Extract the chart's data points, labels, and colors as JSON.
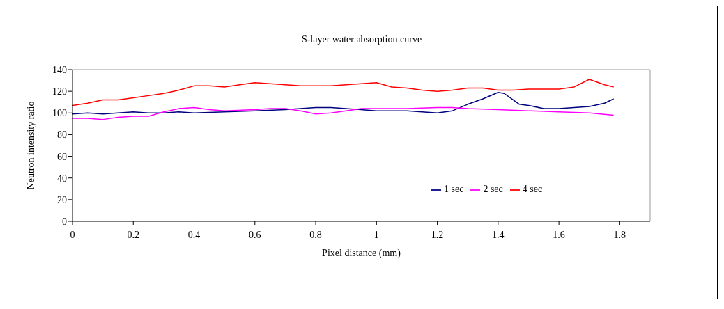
{
  "chart_data": {
    "type": "line",
    "title": "S-layer water absorption curve",
    "xlabel": "Pixel distance (mm)",
    "ylabel": "Neutron intensity ratio",
    "xlim": [
      0,
      1.9
    ],
    "xticks": [
      0,
      0.2,
      0.4,
      0.6,
      0.8,
      1,
      1.2,
      1.4,
      1.6,
      1.8
    ],
    "ylim": [
      0,
      140
    ],
    "yticks": [
      0,
      20,
      40,
      60,
      80,
      100,
      120,
      140
    ],
    "grid": false,
    "legend": "right",
    "marker": "none",
    "line_style": "solid",
    "series": [
      {
        "name": "1 sec",
        "color": "#000080",
        "x": [
          0,
          0.05,
          0.1,
          0.15,
          0.2,
          0.25,
          0.3,
          0.35,
          0.4,
          0.5,
          0.6,
          0.7,
          0.75,
          0.8,
          0.85,
          0.9,
          1.0,
          1.1,
          1.15,
          1.2,
          1.25,
          1.3,
          1.35,
          1.4,
          1.42,
          1.47,
          1.5,
          1.55,
          1.6,
          1.65,
          1.7,
          1.75,
          1.78
        ],
        "values": [
          99,
          100,
          99,
          100,
          101,
          100,
          100,
          101,
          100,
          101,
          102,
          103,
          104,
          105,
          105,
          104,
          102,
          102,
          101,
          100,
          102,
          108,
          113,
          119,
          118,
          108,
          107,
          104,
          104,
          105,
          106,
          109,
          113
        ]
      },
      {
        "name": "2 sec",
        "color": "#ff00ff",
        "x": [
          0,
          0.05,
          0.1,
          0.15,
          0.2,
          0.25,
          0.3,
          0.35,
          0.4,
          0.45,
          0.5,
          0.6,
          0.65,
          0.7,
          0.75,
          0.8,
          0.85,
          0.9,
          0.95,
          1.0,
          1.1,
          1.2,
          1.25,
          1.3,
          1.4,
          1.5,
          1.6,
          1.7,
          1.78
        ],
        "values": [
          95,
          95,
          94,
          96,
          97,
          97,
          101,
          104,
          105,
          103,
          102,
          103,
          104,
          104,
          102,
          99,
          100,
          102,
          104,
          104,
          104,
          105,
          105,
          104,
          103,
          102,
          101,
          100,
          98
        ]
      },
      {
        "name": "4 sec",
        "color": "#ff0000",
        "x": [
          0,
          0.05,
          0.1,
          0.15,
          0.2,
          0.25,
          0.3,
          0.35,
          0.4,
          0.45,
          0.5,
          0.55,
          0.6,
          0.65,
          0.7,
          0.75,
          0.8,
          0.85,
          0.9,
          0.95,
          1.0,
          1.05,
          1.1,
          1.15,
          1.2,
          1.25,
          1.3,
          1.35,
          1.4,
          1.45,
          1.5,
          1.55,
          1.6,
          1.65,
          1.7,
          1.75,
          1.78
        ],
        "values": [
          107,
          109,
          112,
          112,
          114,
          116,
          118,
          121,
          125,
          125,
          124,
          126,
          128,
          127,
          126,
          125,
          125,
          125,
          126,
          127,
          128,
          124,
          123,
          121,
          120,
          121,
          123,
          123,
          121,
          121,
          122,
          122,
          122,
          124,
          131,
          126,
          124
        ]
      }
    ]
  }
}
